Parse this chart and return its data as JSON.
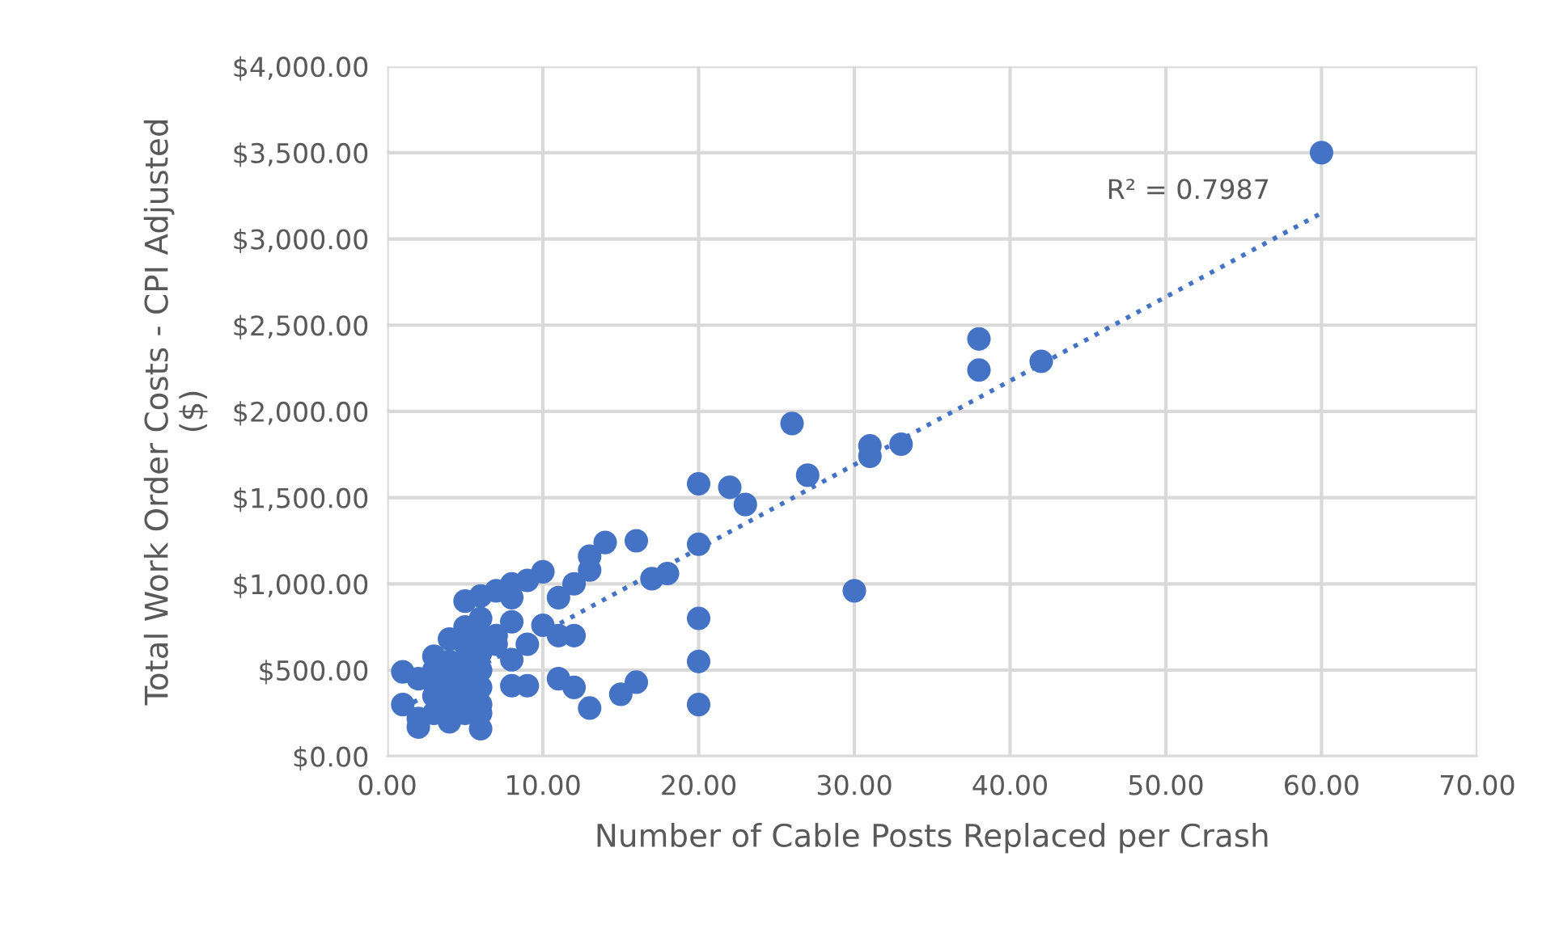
{
  "chart_data": {
    "type": "scatter",
    "xlabel": "Number of Cable Posts Replaced per Crash",
    "ylabel": "Total Work Order Costs - CPI Adjusted\n($)",
    "xlim": [
      0,
      70
    ],
    "ylim": [
      0,
      4000
    ],
    "xticks": [
      {
        "value": 0,
        "label": "0.00"
      },
      {
        "value": 10,
        "label": "10.00"
      },
      {
        "value": 20,
        "label": "20.00"
      },
      {
        "value": 30,
        "label": "30.00"
      },
      {
        "value": 40,
        "label": "40.00"
      },
      {
        "value": 50,
        "label": "50.00"
      },
      {
        "value": 60,
        "label": "60.00"
      },
      {
        "value": 70,
        "label": "70.00"
      }
    ],
    "yticks": [
      {
        "value": 0,
        "label": "$0.00"
      },
      {
        "value": 500,
        "label": "$500.00"
      },
      {
        "value": 1000,
        "label": "$1,000.00"
      },
      {
        "value": 1500,
        "label": "$1,500.00"
      },
      {
        "value": 2000,
        "label": "$2,000.00"
      },
      {
        "value": 2500,
        "label": "$2,500.00"
      },
      {
        "value": 3000,
        "label": "$3,000.00"
      },
      {
        "value": 3500,
        "label": "$3,500.00"
      },
      {
        "value": 4000,
        "label": "$4,000.00"
      }
    ],
    "grid": true,
    "marker": "circle",
    "series": [
      {
        "color": "#4472c4",
        "x": [
          60,
          42,
          38,
          38,
          33,
          31,
          31,
          27,
          26,
          23,
          22,
          20,
          20,
          20,
          20,
          20,
          30,
          18,
          17,
          16,
          14,
          13,
          13,
          12,
          12,
          11,
          11,
          10,
          10,
          9,
          9,
          8,
          8,
          8,
          8,
          8,
          9,
          11,
          12,
          13,
          15,
          16,
          7,
          6,
          5,
          6,
          7,
          6,
          2,
          1,
          1,
          2,
          3,
          3,
          3,
          3,
          4,
          4,
          4,
          4,
          4,
          5,
          5,
          5,
          5,
          5,
          5,
          6,
          6,
          6,
          6,
          6,
          3,
          2,
          4,
          6,
          7
        ],
        "values": [
          3500,
          2290,
          2420,
          2240,
          1810,
          1800,
          1740,
          1630,
          1930,
          1460,
          1560,
          1580,
          1230,
          800,
          550,
          300,
          960,
          1060,
          1030,
          1250,
          1240,
          1160,
          1080,
          1000,
          700,
          700,
          920,
          1070,
          760,
          1020,
          650,
          1000,
          920,
          780,
          560,
          410,
          410,
          450,
          400,
          280,
          360,
          430,
          960,
          930,
          900,
          800,
          650,
          160,
          170,
          490,
          300,
          450,
          250,
          350,
          500,
          580,
          300,
          400,
          450,
          550,
          200,
          250,
          350,
          450,
          550,
          650,
          750,
          300,
          400,
          500,
          600,
          700,
          420,
          220,
          680,
          250,
          700
        ]
      },
      {
        "type": "line",
        "color": "#4472c4",
        "line_style": "dotted",
        "marker": "none",
        "x": [
          1,
          60
        ],
        "values": [
          280,
          3150
        ]
      }
    ],
    "annotations": [
      "R² = 0.7987"
    ]
  }
}
